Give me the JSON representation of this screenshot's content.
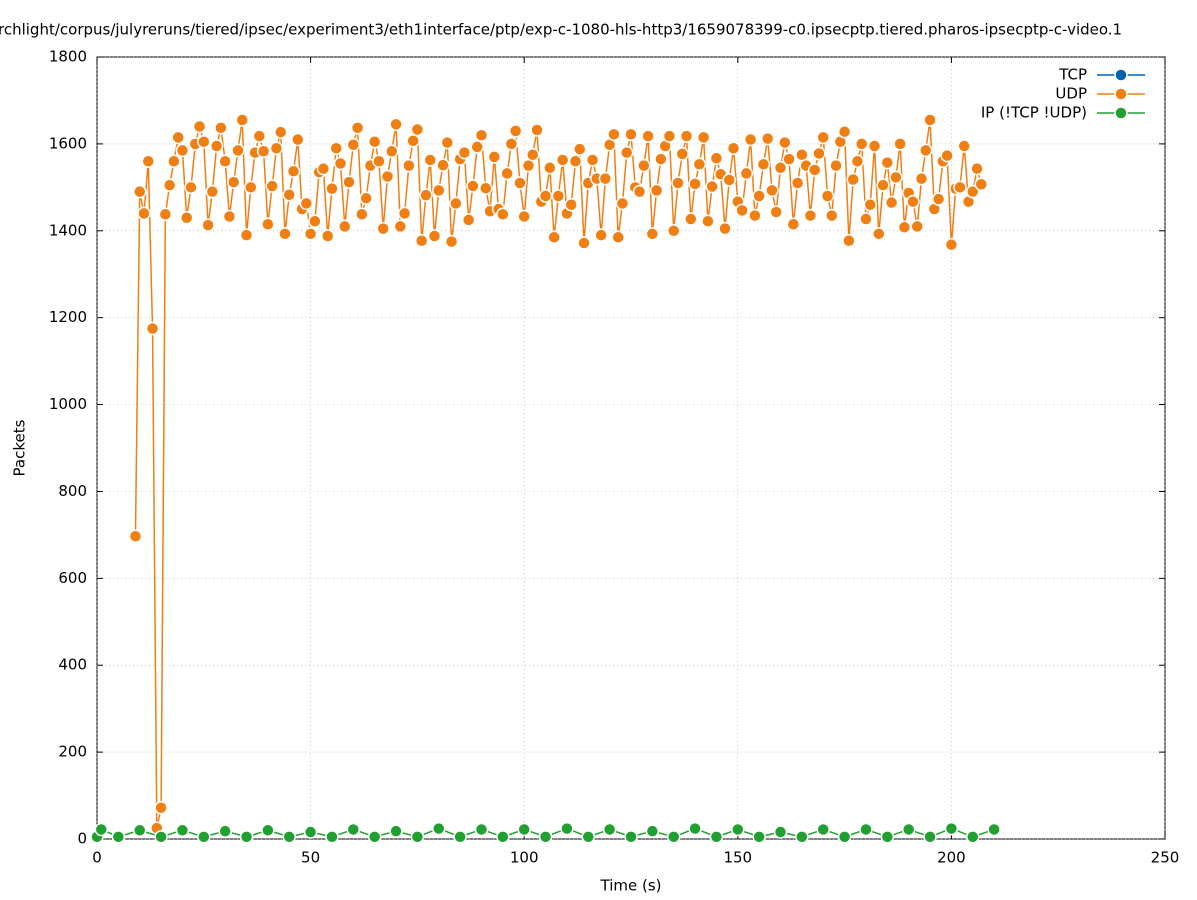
{
  "chart_data": {
    "type": "line",
    "title": "rchlight/corpus/julyreruns/tiered/ipsec/experiment3/eth1interface/ptp/exp-c-1080-hls-http3/1659078399-c0.ipsecptp.tiered.pharos-ipsecptp-c-video.1",
    "x_label": "Time (s)",
    "y_label": "Packets",
    "xlim": [
      0,
      250
    ],
    "xticks": [
      0,
      50,
      100,
      150,
      200,
      250
    ],
    "ylim": [
      0,
      1800
    ],
    "yticks": [
      0,
      200,
      400,
      600,
      800,
      1000,
      1200,
      1400,
      1600,
      1800
    ],
    "grid": true,
    "legend": "top-right",
    "series": [
      {
        "name": "TCP",
        "color": "#0060ad",
        "x": [],
        "values": []
      },
      {
        "name": "UDP",
        "color": "#f07f13",
        "x": [
          9,
          10,
          11,
          12,
          13,
          14,
          15,
          16,
          17,
          18,
          19,
          20,
          21,
          22,
          23,
          24,
          25,
          26,
          27,
          28,
          29,
          30,
          31,
          32,
          33,
          34,
          35,
          36,
          37,
          38,
          39,
          40,
          41,
          42,
          43,
          44,
          45,
          46,
          47,
          48,
          49,
          50,
          51,
          52,
          53,
          54,
          55,
          56,
          57,
          58,
          59,
          60,
          61,
          62,
          63,
          64,
          65,
          66,
          67,
          68,
          69,
          70,
          71,
          72,
          73,
          74,
          75,
          76,
          77,
          78,
          79,
          80,
          81,
          82,
          83,
          84,
          85,
          86,
          87,
          88,
          89,
          90,
          91,
          92,
          93,
          94,
          95,
          96,
          97,
          98,
          99,
          100,
          101,
          102,
          103,
          104,
          105,
          106,
          107,
          108,
          109,
          110,
          111,
          112,
          113,
          114,
          115,
          116,
          117,
          118,
          119,
          120,
          121,
          122,
          123,
          124,
          125,
          126,
          127,
          128,
          129,
          130,
          131,
          132,
          133,
          134,
          135,
          136,
          137,
          138,
          139,
          140,
          141,
          142,
          143,
          144,
          145,
          146,
          147,
          148,
          149,
          150,
          151,
          152,
          153,
          154,
          155,
          156,
          157,
          158,
          159,
          160,
          161,
          162,
          163,
          164,
          165,
          166,
          167,
          168,
          169,
          170,
          171,
          172,
          173,
          174,
          175,
          176,
          177,
          178,
          179,
          180,
          181,
          182,
          183,
          184,
          185,
          186,
          187,
          188,
          189,
          190,
          191,
          192,
          193,
          194,
          195,
          196,
          197,
          198,
          199,
          200,
          201,
          202,
          203,
          204,
          205,
          206,
          207
        ],
        "values": [
          697,
          1490,
          1440,
          1560,
          1175,
          25,
          72,
          1438,
          1505,
          1560,
          1615,
          1585,
          1430,
          1500,
          1600,
          1640,
          1605,
          1413,
          1490,
          1595,
          1637,
          1560,
          1433,
          1512,
          1585,
          1655,
          1390,
          1500,
          1580,
          1618,
          1583,
          1415,
          1503,
          1590,
          1627,
          1393,
          1483,
          1537,
          1610,
          1450,
          1463,
          1393,
          1422,
          1535,
          1543,
          1388,
          1497,
          1590,
          1555,
          1410,
          1512,
          1598,
          1637,
          1438,
          1475,
          1550,
          1605,
          1560,
          1405,
          1525,
          1583,
          1645,
          1410,
          1440,
          1550,
          1607,
          1633,
          1377,
          1482,
          1563,
          1388,
          1493,
          1551,
          1603,
          1375,
          1463,
          1565,
          1580,
          1425,
          1503,
          1593,
          1620,
          1498,
          1445,
          1570,
          1450,
          1438,
          1532,
          1600,
          1630,
          1510,
          1433,
          1550,
          1575,
          1632,
          1467,
          1480,
          1545,
          1385,
          1480,
          1563,
          1440,
          1460,
          1560,
          1588,
          1372,
          1510,
          1563,
          1520,
          1390,
          1520,
          1598,
          1622,
          1385,
          1463,
          1580,
          1622,
          1500,
          1490,
          1550,
          1618,
          1393,
          1493,
          1565,
          1595,
          1618,
          1400,
          1510,
          1577,
          1618,
          1427,
          1508,
          1553,
          1615,
          1422,
          1502,
          1567,
          1530,
          1405,
          1517,
          1590,
          1467,
          1447,
          1532,
          1610,
          1435,
          1480,
          1553,
          1612,
          1493,
          1443,
          1545,
          1603,
          1565,
          1415,
          1510,
          1575,
          1550,
          1435,
          1540,
          1578,
          1615,
          1480,
          1435,
          1550,
          1605,
          1628,
          1377,
          1518,
          1560,
          1600,
          1427,
          1460,
          1595,
          1393,
          1505,
          1557,
          1465,
          1523,
          1600,
          1408,
          1487,
          1467,
          1410,
          1520,
          1585,
          1655,
          1450,
          1473,
          1560,
          1573,
          1368,
          1497,
          1500,
          1595,
          1467,
          1490,
          1543,
          1507
        ]
      },
      {
        "name": "IP (!TCP  !UDP)",
        "color": "#20a030",
        "x": [
          0,
          1,
          5,
          10,
          15,
          20,
          25,
          30,
          35,
          40,
          45,
          50,
          55,
          60,
          65,
          70,
          75,
          80,
          85,
          90,
          95,
          100,
          105,
          110,
          115,
          120,
          125,
          130,
          135,
          140,
          145,
          150,
          155,
          160,
          165,
          170,
          175,
          180,
          185,
          190,
          195,
          200,
          205,
          210
        ],
        "values": [
          5,
          22,
          5,
          20,
          5,
          20,
          5,
          18,
          5,
          20,
          5,
          16,
          5,
          22,
          5,
          18,
          5,
          24,
          5,
          22,
          5,
          22,
          5,
          24,
          5,
          22,
          5,
          18,
          5,
          24,
          5,
          22,
          5,
          16,
          5,
          22,
          5,
          22,
          5,
          22,
          5,
          24,
          5,
          22
        ]
      }
    ]
  }
}
